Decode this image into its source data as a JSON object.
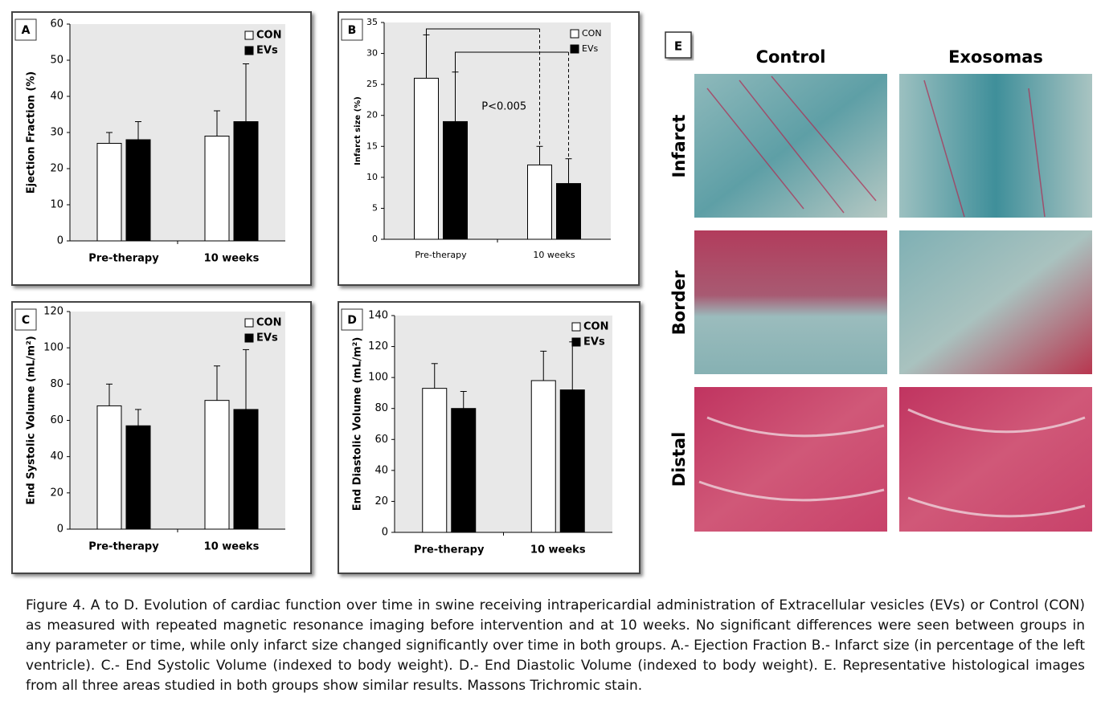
{
  "chart_data": [
    {
      "type": "bar",
      "panel": "A",
      "ylabel": "Ejection Fraction (%)",
      "categories": [
        "Pre-therapy",
        "10 weeks"
      ],
      "series": [
        {
          "name": "CON",
          "color": "#ffffff",
          "values": [
            27,
            29
          ],
          "errors": [
            3,
            7
          ]
        },
        {
          "name": "EVs",
          "color": "#000000",
          "values": [
            28,
            33
          ],
          "errors": [
            5,
            16
          ]
        }
      ],
      "ylim": [
        0,
        60
      ],
      "yticks": [
        0,
        10,
        20,
        30,
        40,
        50,
        60
      ]
    },
    {
      "type": "bar",
      "panel": "B",
      "ylabel": "Infarct size (%)",
      "annotation": "P<0.005",
      "categories": [
        "Pre-therapy",
        "10 weeks"
      ],
      "series": [
        {
          "name": "CON",
          "color": "#ffffff",
          "values": [
            26,
            12
          ],
          "errors": [
            7,
            3
          ]
        },
        {
          "name": "EVs",
          "color": "#000000",
          "values": [
            19,
            9
          ],
          "errors": [
            8,
            4
          ]
        }
      ],
      "ylim": [
        0,
        35
      ],
      "yticks": [
        0,
        5,
        10,
        15,
        20,
        25,
        30,
        35
      ]
    },
    {
      "type": "bar",
      "panel": "C",
      "ylabel": "End Systolic Volume (mL/m²)",
      "categories": [
        "Pre-therapy",
        "10 weeks"
      ],
      "series": [
        {
          "name": "CON",
          "color": "#ffffff",
          "values": [
            68,
            71
          ],
          "errors": [
            12,
            19
          ]
        },
        {
          "name": "EVs",
          "color": "#000000",
          "values": [
            57,
            66
          ],
          "errors": [
            9,
            33
          ]
        }
      ],
      "ylim": [
        0,
        120
      ],
      "yticks": [
        0,
        20,
        40,
        60,
        80,
        100,
        120
      ]
    },
    {
      "type": "bar",
      "panel": "D",
      "ylabel": "End Diastolic Volume (mL/m²)",
      "categories": [
        "Pre-therapy",
        "10 weeks"
      ],
      "series": [
        {
          "name": "CON",
          "color": "#ffffff",
          "values": [
            93,
            98
          ],
          "errors": [
            16,
            19
          ]
        },
        {
          "name": "EVs",
          "color": "#000000",
          "values": [
            80,
            92
          ],
          "errors": [
            11,
            31
          ]
        }
      ],
      "ylim": [
        0,
        140
      ],
      "yticks": [
        0,
        20,
        40,
        60,
        80,
        100,
        120,
        140
      ]
    }
  ],
  "histology": {
    "panel": "E",
    "columns": [
      "Control",
      "Exosomas"
    ],
    "rows": [
      "Infarct",
      "Border",
      "Distal"
    ]
  },
  "caption": "Figure 4. A to D. Evolution of cardiac function over time in swine receiving intrapericardial administration of Extracellular vesicles (EVs) or Control (CON) as measured with repeated magnetic resonance imaging before intervention and at 10 weeks. No significant differences were seen between groups in any parameter or time, while only infarct size changed significantly over time in both groups. A.- Ejection Fraction B.- Infarct size (in percentage of the left ventricle). C.- End Systolic Volume (indexed to body weight). D.- End Diastolic Volume (indexed to body weight). E. Representative histological images from all three areas studied in both groups show similar results. Massons Trichromic stain."
}
